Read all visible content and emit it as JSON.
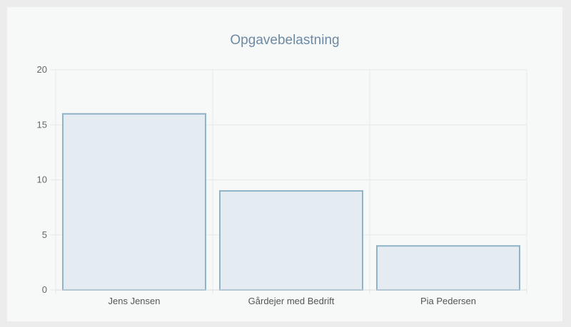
{
  "chart_data": {
    "type": "bar",
    "title": "Opgavebelastning",
    "categories": [
      "Jens Jensen",
      "Gårdejer med Bedrift",
      "Pia Pedersen"
    ],
    "values": [
      16,
      9,
      4
    ],
    "ylim": [
      0,
      20
    ],
    "yticks": [
      0,
      5,
      10,
      15,
      20
    ],
    "grid": true,
    "legend": "none",
    "colors": {
      "bar_fill": "#e4ecf1",
      "bar_stroke": "#8fb4c9",
      "grid": "#e6e9eb",
      "title": "#6e8aa3"
    }
  }
}
